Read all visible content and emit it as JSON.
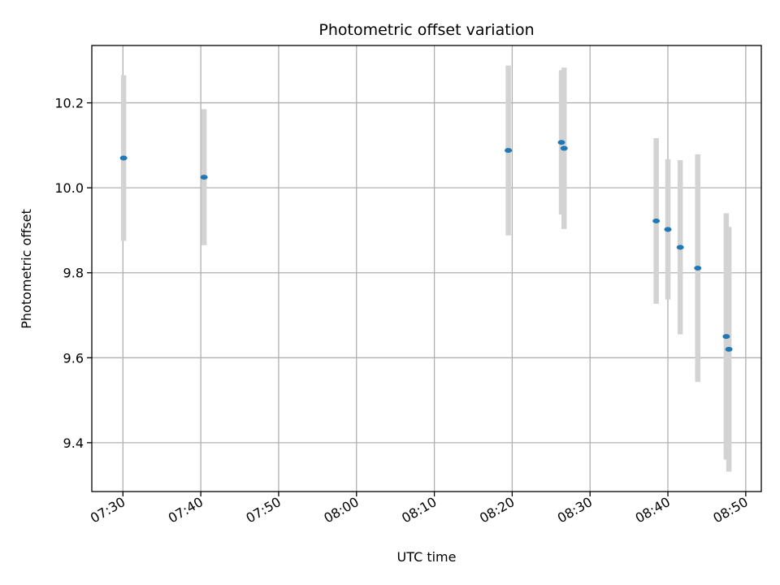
{
  "chart_data": {
    "type": "scatter",
    "title": "Photometric offset variation",
    "xlabel": "UTC time",
    "ylabel": "Photometric offset",
    "xlim": [
      "07:26",
      "08:52"
    ],
    "ylim": [
      9.285,
      10.335
    ],
    "x_ticks": [
      "07:30",
      "07:40",
      "07:50",
      "08:00",
      "08:10",
      "08:20",
      "08:30",
      "08:40",
      "08:50"
    ],
    "y_ticks": [
      9.4,
      9.6,
      9.8,
      10.0,
      10.2
    ],
    "y_tick_labels": [
      "9.4",
      "9.6",
      "9.8",
      "10.0",
      "10.2"
    ],
    "grid": true,
    "colors": {
      "marker": "#1f77b4",
      "errorbar": "#d3d3d3",
      "grid": "#b0b0b0"
    },
    "points": [
      {
        "x": "07:30:05",
        "y": 10.07,
        "yerr": 0.195
      },
      {
        "x": "07:40:25",
        "y": 10.025,
        "yerr": 0.16
      },
      {
        "x": "08:19:30",
        "y": 10.088,
        "yerr": 0.2
      },
      {
        "x": "08:26:20",
        "y": 10.107,
        "yerr": 0.17
      },
      {
        "x": "08:26:40",
        "y": 10.093,
        "yerr": 0.19
      },
      {
        "x": "08:38:30",
        "y": 9.922,
        "yerr": 0.195
      },
      {
        "x": "08:40:00",
        "y": 9.902,
        "yerr": 0.165
      },
      {
        "x": "08:41:35",
        "y": 9.86,
        "yerr": 0.205
      },
      {
        "x": "08:43:50",
        "y": 9.811,
        "yerr": 0.268
      },
      {
        "x": "08:47:30",
        "y": 9.65,
        "yerr": 0.29
      },
      {
        "x": "08:47:50",
        "y": 9.62,
        "yerr": 0.288
      }
    ]
  }
}
